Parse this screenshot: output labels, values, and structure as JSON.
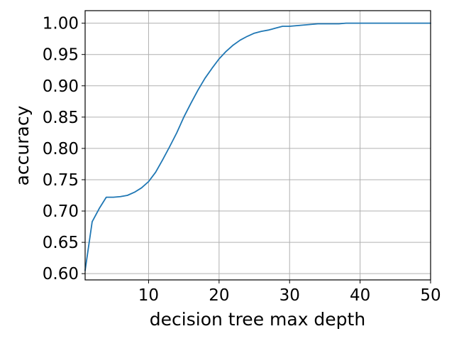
{
  "chart_data": {
    "type": "line",
    "title": "",
    "xlabel": "decision tree max depth",
    "ylabel": "accuracy",
    "xlim": [
      1,
      50
    ],
    "ylim": [
      0.59,
      1.02
    ],
    "grid": true,
    "legend": "none",
    "x_ticks": [
      10,
      20,
      30,
      40,
      50
    ],
    "y_ticks": [
      0.6,
      0.65,
      0.7,
      0.75,
      0.8,
      0.85,
      0.9,
      0.95,
      1.0
    ],
    "x_tick_labels": [
      "10",
      "20",
      "30",
      "40",
      "50"
    ],
    "y_tick_labels": [
      "0.60",
      "0.65",
      "0.70",
      "0.75",
      "0.80",
      "0.85",
      "0.90",
      "0.95",
      "1.00"
    ],
    "series": [
      {
        "color": "#1f77b4",
        "x": [
          1,
          2,
          3,
          4,
          5,
          6,
          7,
          8,
          9,
          10,
          11,
          12,
          13,
          14,
          15,
          16,
          17,
          18,
          19,
          20,
          21,
          22,
          23,
          24,
          25,
          26,
          27,
          28,
          29,
          30,
          31,
          32,
          33,
          34,
          35,
          36,
          37,
          38,
          39,
          40,
          41,
          42,
          43,
          44,
          45,
          46,
          47,
          48,
          49,
          50
        ],
        "y": [
          0.605,
          0.683,
          0.704,
          0.722,
          0.722,
          0.723,
          0.725,
          0.73,
          0.737,
          0.747,
          0.762,
          0.782,
          0.803,
          0.825,
          0.85,
          0.872,
          0.893,
          0.912,
          0.928,
          0.943,
          0.955,
          0.965,
          0.973,
          0.979,
          0.984,
          0.987,
          0.989,
          0.992,
          0.995,
          0.995,
          0.996,
          0.997,
          0.998,
          0.999,
          0.999,
          0.999,
          0.999,
          1.0,
          1.0,
          1.0,
          1.0,
          1.0,
          1.0,
          1.0,
          1.0,
          1.0,
          1.0,
          1.0,
          1.0,
          1.0
        ]
      }
    ]
  }
}
